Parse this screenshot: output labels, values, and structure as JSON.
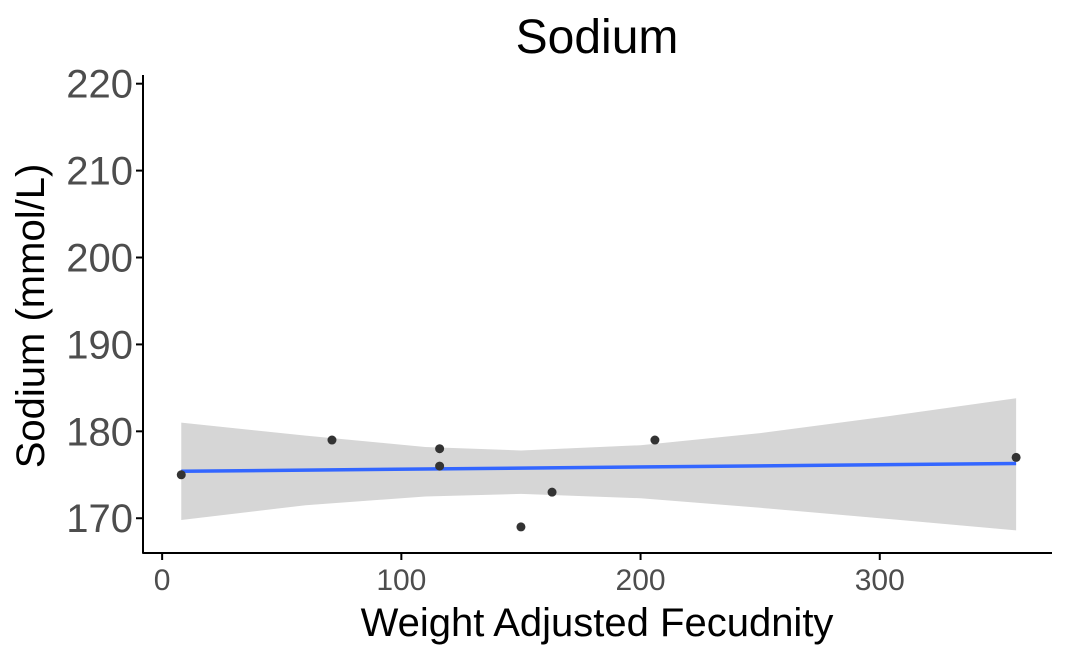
{
  "chart_data": {
    "type": "scatter",
    "title": "Sodium",
    "xlabel": "Weight Adjusted Fecudnity",
    "ylabel": "Sodium (mmol/L)",
    "xlim": [
      -8,
      372
    ],
    "ylim": [
      166,
      221
    ],
    "x_ticks": [
      0,
      100,
      200,
      300
    ],
    "x_tick_labels": [
      "0",
      "100",
      "200",
      "300"
    ],
    "y_ticks": [
      170,
      180,
      190,
      200,
      210,
      220
    ],
    "y_tick_labels": [
      "170",
      "180",
      "190",
      "200",
      "210",
      "220"
    ],
    "grid": false,
    "legend": "none",
    "points": [
      {
        "x": 8,
        "y": 175
      },
      {
        "x": 71,
        "y": 179
      },
      {
        "x": 116,
        "y": 178
      },
      {
        "x": 116,
        "y": 176
      },
      {
        "x": 150,
        "y": 169
      },
      {
        "x": 163,
        "y": 173
      },
      {
        "x": 206,
        "y": 179
      },
      {
        "x": 357,
        "y": 177
      }
    ],
    "fit_line": {
      "x": [
        8,
        357
      ],
      "y": [
        175.4,
        176.3
      ]
    },
    "confidence_band": {
      "x": [
        8,
        60,
        110,
        150,
        200,
        250,
        300,
        357
      ],
      "upper": [
        181.0,
        179.5,
        178.2,
        177.8,
        178.4,
        179.8,
        181.6,
        183.8
      ],
      "lower": [
        169.8,
        171.5,
        172.5,
        172.8,
        172.3,
        171.2,
        170.0,
        168.6
      ]
    },
    "colors": {
      "points": "#333333",
      "fit_line": "#3366ff",
      "band": "#d6d6d6",
      "axis": "#000000",
      "tick_text": "#4d4d4d"
    }
  }
}
